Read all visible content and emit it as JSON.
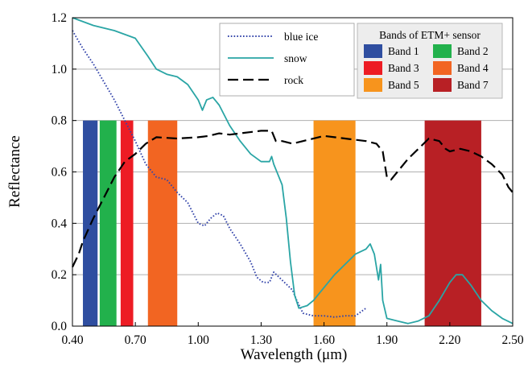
{
  "chart_data": {
    "type": "line",
    "title": "",
    "xlabel": "Wavelength (μm)",
    "ylabel": "Reflectance",
    "xlim": [
      0.4,
      2.5
    ],
    "ylim": [
      0.0,
      1.2
    ],
    "x_ticks": [
      "0.40",
      "0.70",
      "1.00",
      "1.30",
      "1.60",
      "1.90",
      "2.20",
      "2.50"
    ],
    "y_ticks": [
      "0.0",
      "0.2",
      "0.4",
      "0.6",
      "0.8",
      "1.0",
      "1.2"
    ],
    "grid": "horizontal",
    "series": [
      {
        "name": "blue ice",
        "style": "dotted",
        "color": "#3344aa",
        "points": [
          [
            0.4,
            1.15
          ],
          [
            0.45,
            1.08
          ],
          [
            0.5,
            1.02
          ],
          [
            0.55,
            0.95
          ],
          [
            0.6,
            0.88
          ],
          [
            0.65,
            0.8
          ],
          [
            0.7,
            0.72
          ],
          [
            0.75,
            0.63
          ],
          [
            0.8,
            0.58
          ],
          [
            0.85,
            0.57
          ],
          [
            0.9,
            0.52
          ],
          [
            0.95,
            0.48
          ],
          [
            1.0,
            0.4
          ],
          [
            1.03,
            0.39
          ],
          [
            1.06,
            0.42
          ],
          [
            1.09,
            0.44
          ],
          [
            1.12,
            0.43
          ],
          [
            1.15,
            0.38
          ],
          [
            1.2,
            0.32
          ],
          [
            1.25,
            0.25
          ],
          [
            1.28,
            0.19
          ],
          [
            1.31,
            0.17
          ],
          [
            1.34,
            0.17
          ],
          [
            1.36,
            0.21
          ],
          [
            1.45,
            0.14
          ],
          [
            1.47,
            0.1
          ],
          [
            1.5,
            0.05
          ],
          [
            1.55,
            0.04
          ],
          [
            1.6,
            0.04
          ],
          [
            1.65,
            0.035
          ],
          [
            1.7,
            0.04
          ],
          [
            1.75,
            0.04
          ],
          [
            1.8,
            0.07
          ]
        ]
      },
      {
        "name": "snow",
        "style": "solid",
        "color": "#2aa5a5",
        "points": [
          [
            0.4,
            1.2
          ],
          [
            0.5,
            1.17
          ],
          [
            0.6,
            1.15
          ],
          [
            0.7,
            1.12
          ],
          [
            0.76,
            1.05
          ],
          [
            0.8,
            1.0
          ],
          [
            0.85,
            0.98
          ],
          [
            0.9,
            0.97
          ],
          [
            0.95,
            0.94
          ],
          [
            1.0,
            0.88
          ],
          [
            1.02,
            0.84
          ],
          [
            1.04,
            0.88
          ],
          [
            1.07,
            0.89
          ],
          [
            1.1,
            0.86
          ],
          [
            1.15,
            0.78
          ],
          [
            1.2,
            0.72
          ],
          [
            1.25,
            0.67
          ],
          [
            1.3,
            0.64
          ],
          [
            1.34,
            0.64
          ],
          [
            1.35,
            0.66
          ],
          [
            1.36,
            0.63
          ],
          [
            1.38,
            0.59
          ],
          [
            1.4,
            0.55
          ],
          [
            1.42,
            0.42
          ],
          [
            1.44,
            0.25
          ],
          [
            1.46,
            0.12
          ],
          [
            1.48,
            0.07
          ],
          [
            1.52,
            0.08
          ],
          [
            1.55,
            0.1
          ],
          [
            1.6,
            0.15
          ],
          [
            1.65,
            0.2
          ],
          [
            1.7,
            0.24
          ],
          [
            1.75,
            0.28
          ],
          [
            1.8,
            0.3
          ],
          [
            1.82,
            0.32
          ],
          [
            1.84,
            0.28
          ],
          [
            1.86,
            0.18
          ],
          [
            1.87,
            0.24
          ],
          [
            1.88,
            0.1
          ],
          [
            1.9,
            0.03
          ],
          [
            1.95,
            0.02
          ],
          [
            2.0,
            0.01
          ],
          [
            2.05,
            0.02
          ],
          [
            2.1,
            0.04
          ],
          [
            2.15,
            0.1
          ],
          [
            2.2,
            0.17
          ],
          [
            2.23,
            0.2
          ],
          [
            2.26,
            0.2
          ],
          [
            2.3,
            0.16
          ],
          [
            2.35,
            0.1
          ],
          [
            2.4,
            0.06
          ],
          [
            2.45,
            0.03
          ],
          [
            2.5,
            0.01
          ]
        ]
      },
      {
        "name": "rock",
        "style": "dashed",
        "color": "#000000",
        "points": [
          [
            0.4,
            0.23
          ],
          [
            0.43,
            0.28
          ],
          [
            0.45,
            0.33
          ],
          [
            0.5,
            0.42
          ],
          [
            0.55,
            0.5
          ],
          [
            0.6,
            0.58
          ],
          [
            0.65,
            0.64
          ],
          [
            0.7,
            0.67
          ],
          [
            0.75,
            0.71
          ],
          [
            0.8,
            0.735
          ],
          [
            0.9,
            0.73
          ],
          [
            1.0,
            0.735
          ],
          [
            1.05,
            0.74
          ],
          [
            1.1,
            0.75
          ],
          [
            1.15,
            0.745
          ],
          [
            1.2,
            0.75
          ],
          [
            1.3,
            0.76
          ],
          [
            1.35,
            0.76
          ],
          [
            1.37,
            0.72
          ],
          [
            1.4,
            0.72
          ],
          [
            1.45,
            0.71
          ],
          [
            1.5,
            0.72
          ],
          [
            1.6,
            0.74
          ],
          [
            1.7,
            0.73
          ],
          [
            1.8,
            0.72
          ],
          [
            1.85,
            0.71
          ],
          [
            1.88,
            0.68
          ],
          [
            1.9,
            0.58
          ],
          [
            1.92,
            0.57
          ],
          [
            1.95,
            0.6
          ],
          [
            2.0,
            0.65
          ],
          [
            2.05,
            0.69
          ],
          [
            2.1,
            0.73
          ],
          [
            2.15,
            0.72
          ],
          [
            2.18,
            0.69
          ],
          [
            2.2,
            0.68
          ],
          [
            2.25,
            0.69
          ],
          [
            2.3,
            0.68
          ],
          [
            2.35,
            0.66
          ],
          [
            2.4,
            0.63
          ],
          [
            2.45,
            0.59
          ],
          [
            2.48,
            0.54
          ],
          [
            2.5,
            0.52
          ]
        ]
      }
    ],
    "bands": {
      "title": "Bands of ETM+ sensor",
      "top": 0.8,
      "items": [
        {
          "name": "Band 1",
          "range": [
            0.45,
            0.52
          ],
          "color": "#2f4ea0"
        },
        {
          "name": "Band 2",
          "range": [
            0.53,
            0.61
          ],
          "color": "#22b14c"
        },
        {
          "name": "Band 3",
          "range": [
            0.63,
            0.69
          ],
          "color": "#ed1c24"
        },
        {
          "name": "Band 4",
          "range": [
            0.76,
            0.9
          ],
          "color": "#f26522"
        },
        {
          "name": "Band 5",
          "range": [
            1.55,
            1.75
          ],
          "color": "#f7941d"
        },
        {
          "name": "Band 7",
          "range": [
            2.08,
            2.35
          ],
          "color": "#b82025"
        }
      ]
    },
    "legend_position": "top-right"
  }
}
